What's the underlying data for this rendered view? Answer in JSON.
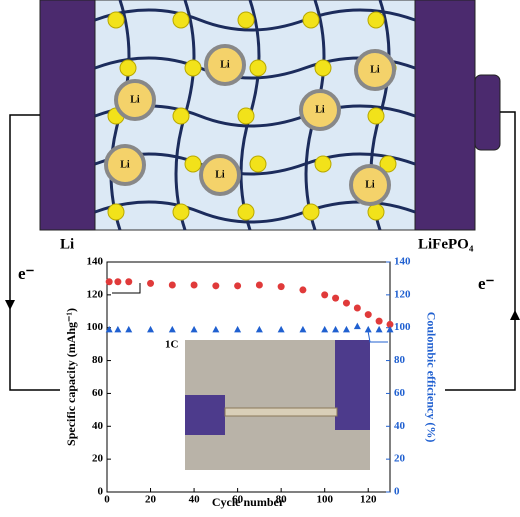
{
  "diagram": {
    "anode": "Li",
    "cathode": "LiFePO₄",
    "electron_left": "e⁻",
    "electron_right": "e⁻",
    "particle_label": "Li"
  },
  "chart_data": {
    "type": "line",
    "x": [
      1,
      5,
      10,
      20,
      30,
      40,
      50,
      60,
      70,
      80,
      90,
      100,
      105,
      110,
      115,
      120,
      125,
      130
    ],
    "series": [
      {
        "name": "Specific capacity",
        "color": "#e03a3a",
        "axis": "y",
        "values": [
          128,
          128,
          128,
          127,
          126,
          126,
          125.5,
          125.5,
          126,
          125,
          123,
          120,
          118,
          115,
          112,
          108,
          104,
          102
        ]
      },
      {
        "name": "Coulombic efficiency",
        "color": "#2060d0",
        "axis": "y2",
        "values": [
          99,
          99,
          99,
          99,
          99,
          99,
          99,
          99,
          99,
          99,
          99,
          99,
          99,
          99,
          101,
          99,
          99,
          99
        ]
      }
    ],
    "xlim": [
      0,
      130
    ],
    "ylim": [
      0,
      140
    ],
    "y2lim": [
      0,
      140
    ],
    "xticks": [
      0,
      20,
      40,
      60,
      80,
      100,
      120
    ],
    "yticks": [
      0,
      20,
      40,
      60,
      80,
      100,
      120,
      140
    ],
    "y2ticks": [
      0,
      20,
      40,
      60,
      80,
      100,
      120,
      140
    ],
    "xlabel": "Cycle number",
    "ylabel": "Specific capacity (mAhg⁻¹)",
    "y2label": "Coulombic efficiency (%)",
    "annotation": "1C"
  }
}
